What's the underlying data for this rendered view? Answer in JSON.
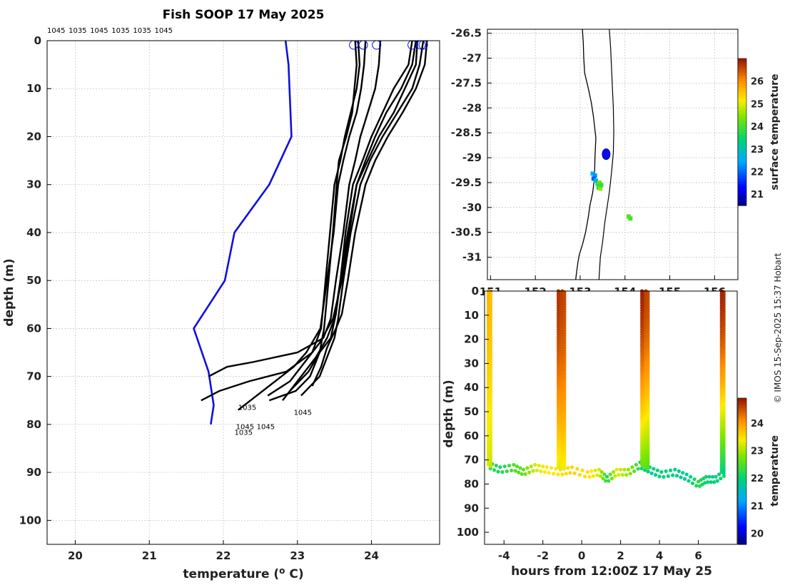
{
  "credit": "© IMOS 15-Sep-2025 15:37 Hobart",
  "chart_data": [
    {
      "id": "profiles",
      "type": "line",
      "title": "Fish SOOP 17 May 2025",
      "xlabel": "temperature (",
      "xlabel_sup": "o",
      "xlabel_end": " C)",
      "ylabel": "depth (m)",
      "xlim": [
        19.62,
        24.92
      ],
      "ylim": [
        0,
        105
      ],
      "y_inverted": true,
      "xticks": [
        20,
        21,
        22,
        23,
        24
      ],
      "yticks": [
        0,
        10,
        20,
        30,
        40,
        50,
        60,
        70,
        80,
        90,
        100
      ],
      "top_labels": [
        "1045",
        "1035",
        "1045",
        "1035",
        "1035",
        "1045"
      ],
      "climatology": {
        "name": "climatology",
        "color": "#1010e0",
        "x": [
          22.84,
          22.88,
          22.92,
          22.62,
          22.15,
          22.02,
          21.6,
          21.8,
          21.87,
          21.83
        ],
        "y": [
          0,
          5,
          20,
          30,
          40,
          50,
          60,
          69,
          76,
          80
        ]
      },
      "profiles": [
        {
          "x": [
            23.78,
            23.8,
            23.77,
            23.74,
            23.66,
            23.56,
            23.53,
            23.48,
            23.42,
            23.36,
            23.3,
            23.17,
            22.98,
            22.62
          ],
          "y": [
            0,
            5,
            10,
            15,
            20,
            25,
            30,
            40,
            50,
            60,
            65,
            70,
            73,
            75
          ]
        },
        {
          "x": [
            23.92,
            23.9,
            23.86,
            23.8,
            23.7,
            23.62,
            23.55,
            23.49,
            23.4,
            23.31,
            23.12,
            22.95,
            22.7,
            22.45,
            22.2
          ],
          "y": [
            0,
            5,
            10,
            15,
            20,
            25,
            30,
            40,
            50,
            60,
            65,
            68,
            71,
            74,
            77
          ]
        },
        {
          "x": [
            24.12,
            24.1,
            24.05,
            23.95,
            23.85,
            23.78,
            23.7,
            23.62,
            23.52,
            23.45,
            23.35,
            23.0,
            22.4,
            22.05,
            21.8
          ],
          "y": [
            0,
            5,
            10,
            15,
            20,
            25,
            30,
            40,
            50,
            58,
            62,
            65,
            67,
            68,
            70
          ]
        },
        {
          "x": [
            24.55,
            24.5,
            24.3,
            24.15,
            24.0,
            23.88,
            23.75,
            23.65,
            23.58,
            23.5,
            23.4,
            23.25,
            23.05,
            22.8
          ],
          "y": [
            0,
            5,
            10,
            15,
            20,
            25,
            30,
            40,
            50,
            58,
            62,
            66,
            70,
            75
          ]
        },
        {
          "x": [
            24.62,
            24.6,
            24.45,
            24.3,
            24.1,
            23.95,
            23.8,
            23.68,
            23.58,
            23.52,
            23.45,
            23.3,
            23.15,
            22.9
          ],
          "y": [
            0,
            5,
            10,
            15,
            20,
            25,
            30,
            40,
            50,
            57,
            62,
            65,
            69,
            73
          ]
        },
        {
          "x": [
            24.7,
            24.65,
            24.55,
            24.35,
            24.15,
            23.98,
            23.85,
            23.72,
            23.62,
            23.55,
            23.5,
            23.4,
            23.3,
            23.05
          ],
          "y": [
            0,
            5,
            10,
            15,
            20,
            25,
            30,
            40,
            50,
            58,
            62,
            66,
            70,
            74
          ]
        },
        {
          "x": [
            24.75,
            24.72,
            24.6,
            24.42,
            24.22,
            24.05,
            23.92,
            23.78,
            23.68,
            23.6,
            23.52,
            23.4,
            23.32,
            23.2
          ],
          "y": [
            0,
            5,
            10,
            15,
            20,
            25,
            30,
            40,
            50,
            57,
            60,
            64,
            68,
            72
          ]
        },
        {
          "x": [
            23.82,
            23.84,
            23.8,
            23.72,
            23.64,
            23.58,
            23.5,
            23.44,
            23.38,
            23.32,
            23.2,
            22.85,
            22.35,
            21.95,
            21.7
          ],
          "y": [
            0,
            5,
            10,
            15,
            20,
            25,
            30,
            40,
            50,
            60,
            65,
            69,
            71,
            73,
            75
          ]
        },
        {
          "x": [
            24.6,
            24.55,
            24.4,
            24.2,
            24.05,
            23.92,
            23.8,
            23.7,
            23.6,
            23.48,
            23.3,
            23.1,
            22.9,
            22.6
          ],
          "y": [
            0,
            5,
            10,
            15,
            20,
            25,
            30,
            40,
            50,
            58,
            63,
            67,
            71,
            74
          ]
        }
      ],
      "start_markers": [
        23.76,
        23.89,
        24.07,
        24.55,
        24.67,
        24.7
      ],
      "end_labels": [
        {
          "text": "1035",
          "x": 22.2,
          "y": 77
        },
        {
          "text": "1045",
          "x": 22.95,
          "y": 78
        },
        {
          "text": "1045",
          "x": 22.17,
          "y": 81
        },
        {
          "text": "1045",
          "x": 22.45,
          "y": 81
        },
        {
          "text": "1035",
          "x": 22.15,
          "y": 82.2
        }
      ]
    },
    {
      "id": "map",
      "type": "scatter",
      "xlim": [
        150.93,
        156.52
      ],
      "ylim": [
        -31.45,
        -26.42
      ],
      "xticks": [
        151,
        152,
        153,
        154,
        155,
        156
      ],
      "xtick_labels": [
        "151",
        "152",
        "153",
        "154",
        "155",
        "156"
      ],
      "yticks": [
        -26.5,
        -27,
        -27.5,
        -28,
        -28.5,
        -29,
        -29.5,
        -30,
        -30.5,
        -31
      ],
      "coast": {
        "lon": [
          153.05,
          153.07,
          153.08,
          153.1,
          153.18,
          153.25,
          153.3,
          153.35,
          153.33,
          153.32,
          153.28,
          153.22,
          153.18,
          153.12,
          153.05,
          152.98,
          152.95,
          152.92,
          152.9
        ],
        "lat": [
          -26.42,
          -26.7,
          -27.0,
          -27.3,
          -27.6,
          -27.9,
          -28.2,
          -28.6,
          -29.0,
          -29.4,
          -29.7,
          -29.95,
          -30.2,
          -30.5,
          -30.75,
          -30.95,
          -31.1,
          -31.3,
          -31.45
        ]
      },
      "bathy": {
        "lon": [
          153.65,
          153.68,
          153.7,
          153.72,
          153.74,
          153.75,
          153.74,
          153.7,
          153.65,
          153.6,
          153.55,
          153.5,
          153.45,
          153.42
        ],
        "lat": [
          -26.42,
          -26.8,
          -27.2,
          -27.6,
          -28.0,
          -28.5,
          -28.9,
          -29.3,
          -29.7,
          -30.0,
          -30.3,
          -30.7,
          -31.0,
          -31.45
        ]
      },
      "current_position": {
        "lon": 153.58,
        "lat": -28.93
      },
      "sst_points": [
        {
          "lon": 153.28,
          "lat": -29.32,
          "t": 22.5
        },
        {
          "lon": 153.33,
          "lat": -29.36,
          "t": 22.3
        },
        {
          "lon": 153.3,
          "lat": -29.42,
          "t": 21.9
        },
        {
          "lon": 153.35,
          "lat": -29.46,
          "t": 22.6
        },
        {
          "lon": 153.39,
          "lat": -29.52,
          "t": 23.6
        },
        {
          "lon": 153.43,
          "lat": -29.5,
          "t": 24.3
        },
        {
          "lon": 153.41,
          "lat": -29.6,
          "t": 23.9
        },
        {
          "lon": 153.45,
          "lat": -29.62,
          "t": 24.5
        },
        {
          "lon": 153.47,
          "lat": -29.55,
          "t": 23.8
        },
        {
          "lon": 154.08,
          "lat": -30.18,
          "t": 24.2
        },
        {
          "lon": 154.12,
          "lat": -30.22,
          "t": 24.0
        }
      ],
      "colorbar": {
        "label": "surface temperature",
        "range": [
          20.5,
          27.0
        ],
        "ticks": [
          21,
          22,
          23,
          24,
          25,
          26
        ]
      }
    },
    {
      "id": "section",
      "type": "scatter",
      "xlabel": "hours from 12:00Z 17 May 25",
      "ylabel": "depth (m)",
      "xlim": [
        -5.0,
        8.0
      ],
      "ylim": [
        0,
        105
      ],
      "y_inverted": true,
      "xticks": [
        -4,
        -2,
        0,
        2,
        4,
        6
      ],
      "yticks": [
        0,
        10,
        20,
        30,
        40,
        50,
        60,
        70,
        80,
        90,
        100
      ],
      "casts": [
        {
          "x": -4.8,
          "t_top": 23.8,
          "t_bottom": 23.2,
          "depth_end": 72
        },
        {
          "x": -1.2,
          "t_top": 24.7,
          "t_bottom": 23.3,
          "depth_end": 73
        },
        {
          "x": -1.0,
          "t_top": 24.6,
          "t_bottom": 23.4,
          "depth_end": 73
        },
        {
          "x": 3.1,
          "t_top": 24.8,
          "t_bottom": 22.7,
          "depth_end": 72
        },
        {
          "x": 3.3,
          "t_top": 24.6,
          "t_bottom": 22.6,
          "depth_end": 73
        },
        {
          "x": 7.2,
          "t_top": 24.8,
          "t_bottom": 22.0,
          "depth_end": 75
        }
      ],
      "bottom_track": {
        "x": [
          -4.8,
          -4.2,
          -3.5,
          -3.0,
          -2.4,
          -1.8,
          -1.1,
          -0.5,
          0.3,
          0.9,
          1.3,
          1.8,
          2.4,
          3.0,
          3.5,
          4.1,
          4.8,
          5.4,
          6.0,
          6.4,
          6.9,
          7.4
        ],
        "depth": [
          72,
          74,
          73,
          75,
          73,
          74,
          75,
          74,
          76,
          75,
          78,
          75,
          75,
          72,
          74,
          76,
          75,
          77,
          80,
          78,
          78,
          75
        ],
        "temp": [
          22.4,
          22.1,
          22.5,
          22.6,
          23.2,
          23.4,
          23.5,
          23.6,
          23.5,
          23.2,
          22.2,
          23.3,
          22.9,
          22.2,
          21.8,
          22.0,
          21.9,
          21.8,
          22.3,
          22.0,
          21.9,
          22.2
        ]
      },
      "colorbar": {
        "label": "temperature",
        "range": [
          19.6,
          24.9
        ],
        "ticks": [
          20,
          21,
          22,
          23,
          24
        ]
      }
    }
  ]
}
